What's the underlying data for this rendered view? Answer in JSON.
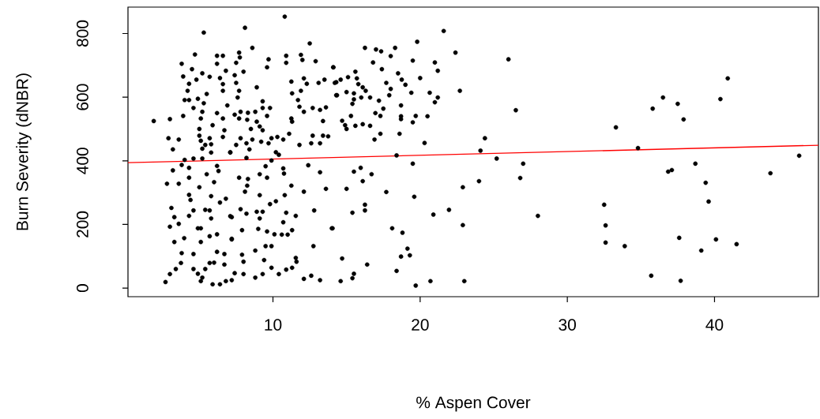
{
  "chart_data": {
    "type": "scatter",
    "xlabel": "% Aspen Cover",
    "ylabel": "Burn Severity (dNBR)",
    "xlim": [
      0.15,
      47.06
    ],
    "ylim": [
      -27,
      883
    ],
    "xticks": [
      10,
      20,
      30,
      40
    ],
    "yticks": [
      0,
      200,
      400,
      600,
      800
    ],
    "series": [
      {
        "color": "#000000",
        "marker": "circle",
        "x": [
          5.3,
          4.7,
          6.2,
          6.6,
          3.8,
          4.5,
          6.2,
          6.8,
          3.9,
          4.8,
          5.2,
          5.7,
          4.3,
          6.4,
          6.6,
          4.2,
          6.6,
          5.5,
          4.0,
          4.3,
          4.9,
          5.3,
          4.6,
          6.9,
          3.9,
          5.2,
          6.2,
          5.1,
          6.6,
          1.9,
          3.0,
          5.9,
          6.7,
          5.0,
          2.9,
          3.6,
          5.0,
          5.7,
          6.6,
          5.1,
          5.4,
          5.8,
          3.2,
          5.2,
          5.8,
          7.1,
          4.6,
          4.0,
          5.2,
          3.8,
          4.3,
          3.2,
          5.5,
          6.2,
          6.3,
          2.8,
          3.6,
          4.3,
          5.0,
          6.0,
          4.3,
          4.4,
          5.8,
          6.4,
          6.8,
          3.1,
          4.6,
          5.4,
          5.7,
          3.3,
          4.3,
          5.8,
          7.1,
          3.0,
          3.6,
          4.9,
          5.1,
          3.97,
          5.7,
          6.2,
          3.3,
          5.1,
          7.2,
          3.8,
          4.6,
          6.2,
          6.7,
          3.75,
          5.7,
          6.0,
          6.7,
          3.4,
          4.6,
          5.4,
          3.0,
          4.9,
          5.2,
          2.7,
          5.1,
          5.9,
          6.4,
          6.8,
          10.8,
          8.1,
          8.6,
          7.7,
          7.75,
          7.5,
          9.7,
          9.6,
          10.9,
          10.9,
          11.9,
          12.0,
          12.5,
          12.9,
          14.1,
          8.0,
          7.4,
          7.5,
          8.9,
          11.25,
          12.1,
          12.3,
          13.1,
          13.5,
          14.3,
          7.7,
          7.6,
          11.3,
          11.9,
          9.3,
          9.3,
          9.8,
          11.7,
          11.8,
          12.1,
          12.7,
          13.2,
          13.6,
          14.3,
          7.4,
          7.8,
          8.3,
          8.8,
          7.7,
          8.25,
          8.9,
          9.6,
          9.1,
          8.5,
          9.3,
          11.25,
          11.3,
          13.4,
          7.8,
          7.5,
          8.2,
          8.6,
          8.4,
          9.2,
          9.9,
          10.3,
          10.7,
          9.7,
          11.1,
          11.8,
          12.7,
          12.6,
          13.2,
          13.4,
          13.75,
          7.1,
          8.2,
          10.2,
          10.4,
          9.9,
          9.5,
          9.1,
          9.6,
          10.7,
          10.75,
          12.4,
          13.2,
          7.7,
          8.3,
          8.25,
          8.1,
          9.1,
          11.25,
          10.8,
          12.1,
          13.6,
          9.8,
          10.2,
          7.8,
          8.2,
          8.9,
          9.3,
          9.1,
          10.9,
          11.55,
          12.8,
          7.2,
          10.7,
          7.9,
          9.0,
          9.6,
          10.1,
          10.6,
          11.0,
          11.3,
          14.0,
          7.2,
          9.5,
          9.9,
          12.75,
          8.8,
          7.9,
          8.0,
          9.4,
          11.55,
          11.6,
          9.9,
          10.9,
          11.3,
          7.4,
          8.0,
          9.3,
          10.4,
          8.8,
          7.2,
          12.1,
          12.6,
          13.2,
          21.6,
          19.8,
          16.25,
          17.0,
          17.35,
          18.3,
          18.0,
          22.4,
          14.1,
          16.8,
          17.4,
          19.5,
          21.0,
          21.2,
          18.5,
          20.0,
          14.2,
          14.6,
          15.1,
          15.6,
          15.7,
          17.7,
          18.75,
          19.0,
          15.8,
          16.1,
          16.3,
          18.0,
          14.35,
          15.0,
          15.5,
          15.5,
          15.4,
          16.0,
          16.6,
          17.9,
          17.2,
          19.4,
          20.65,
          21.2,
          21.0,
          22.7,
          18.7,
          17.5,
          16.96,
          17.3,
          15.3,
          18.7,
          18.7,
          19.7,
          20.5,
          19.5,
          14.7,
          14.9,
          15.0,
          15.6,
          16.1,
          16.6,
          18.6,
          17.3,
          16.9,
          20.3,
          18.4,
          19.5,
          15.5,
          15.96,
          16.1,
          16.7,
          15.0,
          17.7,
          19.6,
          22.9,
          16.25,
          16.25,
          15.4,
          20.9,
          21.96,
          14.05,
          18.1,
          18.8,
          22.9,
          19.14,
          19.3,
          18.7,
          14.7,
          16.4,
          18.4,
          15.5,
          15.4,
          14.6,
          19.7,
          20.7,
          23.0,
          26.0,
          26.5,
          24.4,
          24.1,
          25.2,
          27.0,
          24.0,
          26.8,
          28.0,
          32.5,
          32.6,
          32.6,
          33.9,
          33.3,
          34.8,
          35.8,
          36.5,
          37.5,
          37.9,
          35.7,
          37.7,
          36.85,
          37.1,
          38.7,
          39.4,
          39.6,
          37.6,
          39.1,
          40.1,
          41.5,
          40.4,
          40.9,
          43.8,
          45.75
        ],
        "values": [
          803,
          734,
          730,
          730,
          705,
          688,
          705,
          683,
          665,
          655,
          675,
          664,
          642,
          660,
          641,
          620,
          620,
          610,
          591,
          591,
          595,
          581,
          566,
          574,
          541,
          554,
          550,
          533,
          533,
          525,
          531,
          512,
          496,
          500,
          471,
          467,
          479,
          471,
          475,
          463,
          450,
          452,
          436,
          438,
          426,
          427,
          407,
          403,
          407,
          387,
          378,
          370,
          358,
          384,
          368,
          328,
          328,
          347,
          317,
          333,
          293,
          277,
          289,
          269,
          281,
          252,
          244,
          246,
          244,
          223,
          227,
          219,
          226,
          193,
          202,
          188,
          188,
          157,
          163,
          169,
          145,
          145,
          155,
          110,
          107,
          114,
          107,
          79,
          79,
          80,
          74,
          60,
          60,
          60,
          44,
          45,
          33,
          19,
          22,
          12,
          12,
          22,
          853,
          818,
          755,
          740,
          725,
          708,
          719,
          694,
          730,
          708,
          733,
          717,
          769,
          713,
          694,
          680,
          669,
          645,
          631,
          649,
          659,
          642,
          645,
          655,
          647,
          620,
          599,
          612,
          620,
          587,
          566,
          566,
          591,
          570,
          554,
          566,
          560,
          568,
          606,
          545,
          554,
          551,
          554,
          533,
          529,
          523,
          541,
          508,
          500,
          496,
          533,
          523,
          525,
          471,
          450,
          455,
          467,
          436,
          460,
          471,
          475,
          467,
          455,
          485,
          450,
          479,
          455,
          455,
          479,
          477,
          426,
          409,
          427,
          419,
          401,
          383,
          358,
          347,
          376,
          360,
          386,
          364,
          347,
          343,
          322,
          303,
          292,
          322,
          292,
          303,
          312,
          264,
          273,
          248,
          234,
          240,
          240,
          219,
          237,
          227,
          244,
          223,
          207,
          182,
          186,
          178,
          169,
          168,
          168,
          182,
          188,
          153,
          132,
          132,
          132,
          118,
          105,
          83,
          88,
          95,
          83,
          64,
          58,
          64,
          47,
          44,
          44,
          44,
          33,
          25,
          29,
          39,
          25,
          808,
          774,
          755,
          750,
          744,
          755,
          729,
          740,
          694,
          709,
          688,
          715,
          709,
          683,
          675,
          660,
          645,
          655,
          663,
          680,
          659,
          645,
          655,
          639,
          641,
          631,
          620,
          626,
          606,
          616,
          612,
          593,
          579,
          599,
          599,
          606,
          589,
          614,
          614,
          599,
          584,
          620,
          574,
          564,
          550,
          541,
          541,
          540,
          531,
          541,
          540,
          521,
          526,
          512,
          500,
          510,
          515,
          510,
          485,
          485,
          467,
          456,
          417,
          391,
          366,
          378,
          336,
          358,
          312,
          302,
          287,
          317,
          262,
          244,
          237,
          231,
          246,
          188,
          188,
          174,
          198,
          124,
          103,
          99,
          93,
          74,
          54,
          45,
          31,
          22,
          8,
          22,
          22,
          719,
          559,
          471,
          432,
          407,
          391,
          336,
          346,
          227,
          262,
          197,
          143,
          132,
          505,
          440,
          564,
          599,
          579,
          530,
          39,
          23,
          366,
          371,
          391,
          331,
          272,
          158,
          118,
          153,
          138,
          594,
          659,
          361,
          416
        ]
      },
      {
        "type": "line",
        "marker": "none",
        "color": "#ff0000",
        "x": [
          0.15,
          47.06
        ],
        "values": [
          394,
          449
        ]
      }
    ]
  }
}
